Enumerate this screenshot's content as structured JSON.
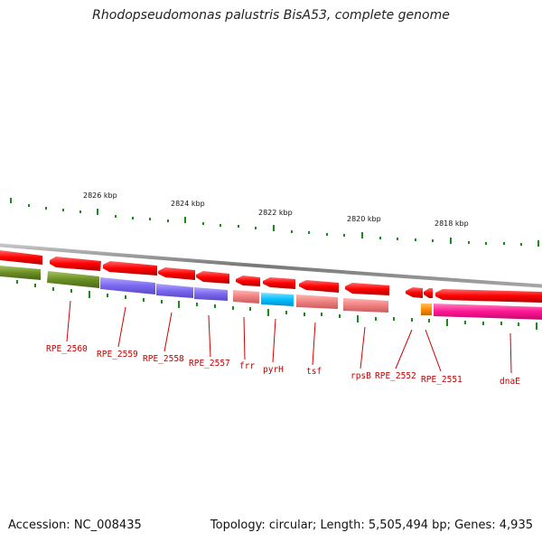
{
  "title": "Rhodopseudomonas palustris BisA53, complete genome",
  "accession": "Accession: NC_008435",
  "summary": "Topology: circular; Length: 5,505,494 bp; Genes: 4,935",
  "scale_labels": [
    "2826 kbp",
    "2824 kbp",
    "2822 kbp",
    "2820 kbp",
    "2818 kbp"
  ],
  "gene_labels": [
    "RPE_2560",
    "RPE_2559",
    "RPE_2558",
    "RPE_2557",
    "frr",
    "pyrH",
    "tsf",
    "rpsB",
    "RPE_2552",
    "RPE_2551",
    "dnaE"
  ],
  "colors": {
    "backbone": "#888888",
    "gene_arrow": "#ff0000",
    "tick": "#1a8a1a",
    "label": "#c00000",
    "olive": "#6b8e23",
    "slate_blue": "#7b68ee",
    "salmon": "#f08080",
    "deep_sky_blue": "#00bfff",
    "dark_orange": "#ff8c00",
    "deep_pink": "#ff1493"
  }
}
